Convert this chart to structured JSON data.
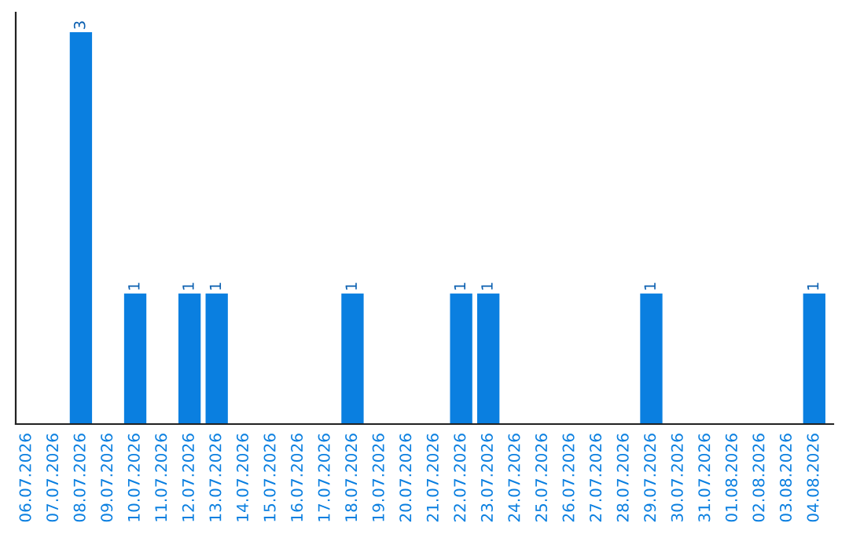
{
  "chart_data": {
    "type": "bar",
    "categories": [
      "06.07.2026",
      "07.07.2026",
      "08.07.2026",
      "09.07.2026",
      "10.07.2026",
      "11.07.2026",
      "12.07.2026",
      "13.07.2026",
      "14.07.2026",
      "15.07.2026",
      "16.07.2026",
      "17.07.2026",
      "18.07.2026",
      "19.07.2026",
      "20.07.2026",
      "21.07.2026",
      "22.07.2026",
      "23.07.2026",
      "24.07.2026",
      "25.07.2026",
      "26.07.2026",
      "27.07.2026",
      "28.07.2026",
      "29.07.2026",
      "30.07.2026",
      "31.07.2026",
      "01.08.2026",
      "02.08.2026",
      "03.08.2026",
      "04.08.2026"
    ],
    "values": [
      0,
      0,
      3,
      0,
      1,
      0,
      1,
      1,
      0,
      0,
      0,
      0,
      1,
      0,
      0,
      0,
      1,
      1,
      0,
      0,
      0,
      0,
      0,
      1,
      0,
      0,
      0,
      0,
      0,
      1
    ],
    "value_labels": [
      null,
      null,
      "3",
      null,
      "1",
      null,
      "1",
      "1",
      null,
      null,
      null,
      null,
      "1",
      null,
      null,
      null,
      "1",
      "1",
      null,
      null,
      null,
      null,
      null,
      "1",
      null,
      null,
      null,
      null,
      null,
      "1"
    ],
    "color": "#0a7fe0",
    "ylim": [
      0,
      3.15
    ],
    "tick_labels": "x"
  }
}
